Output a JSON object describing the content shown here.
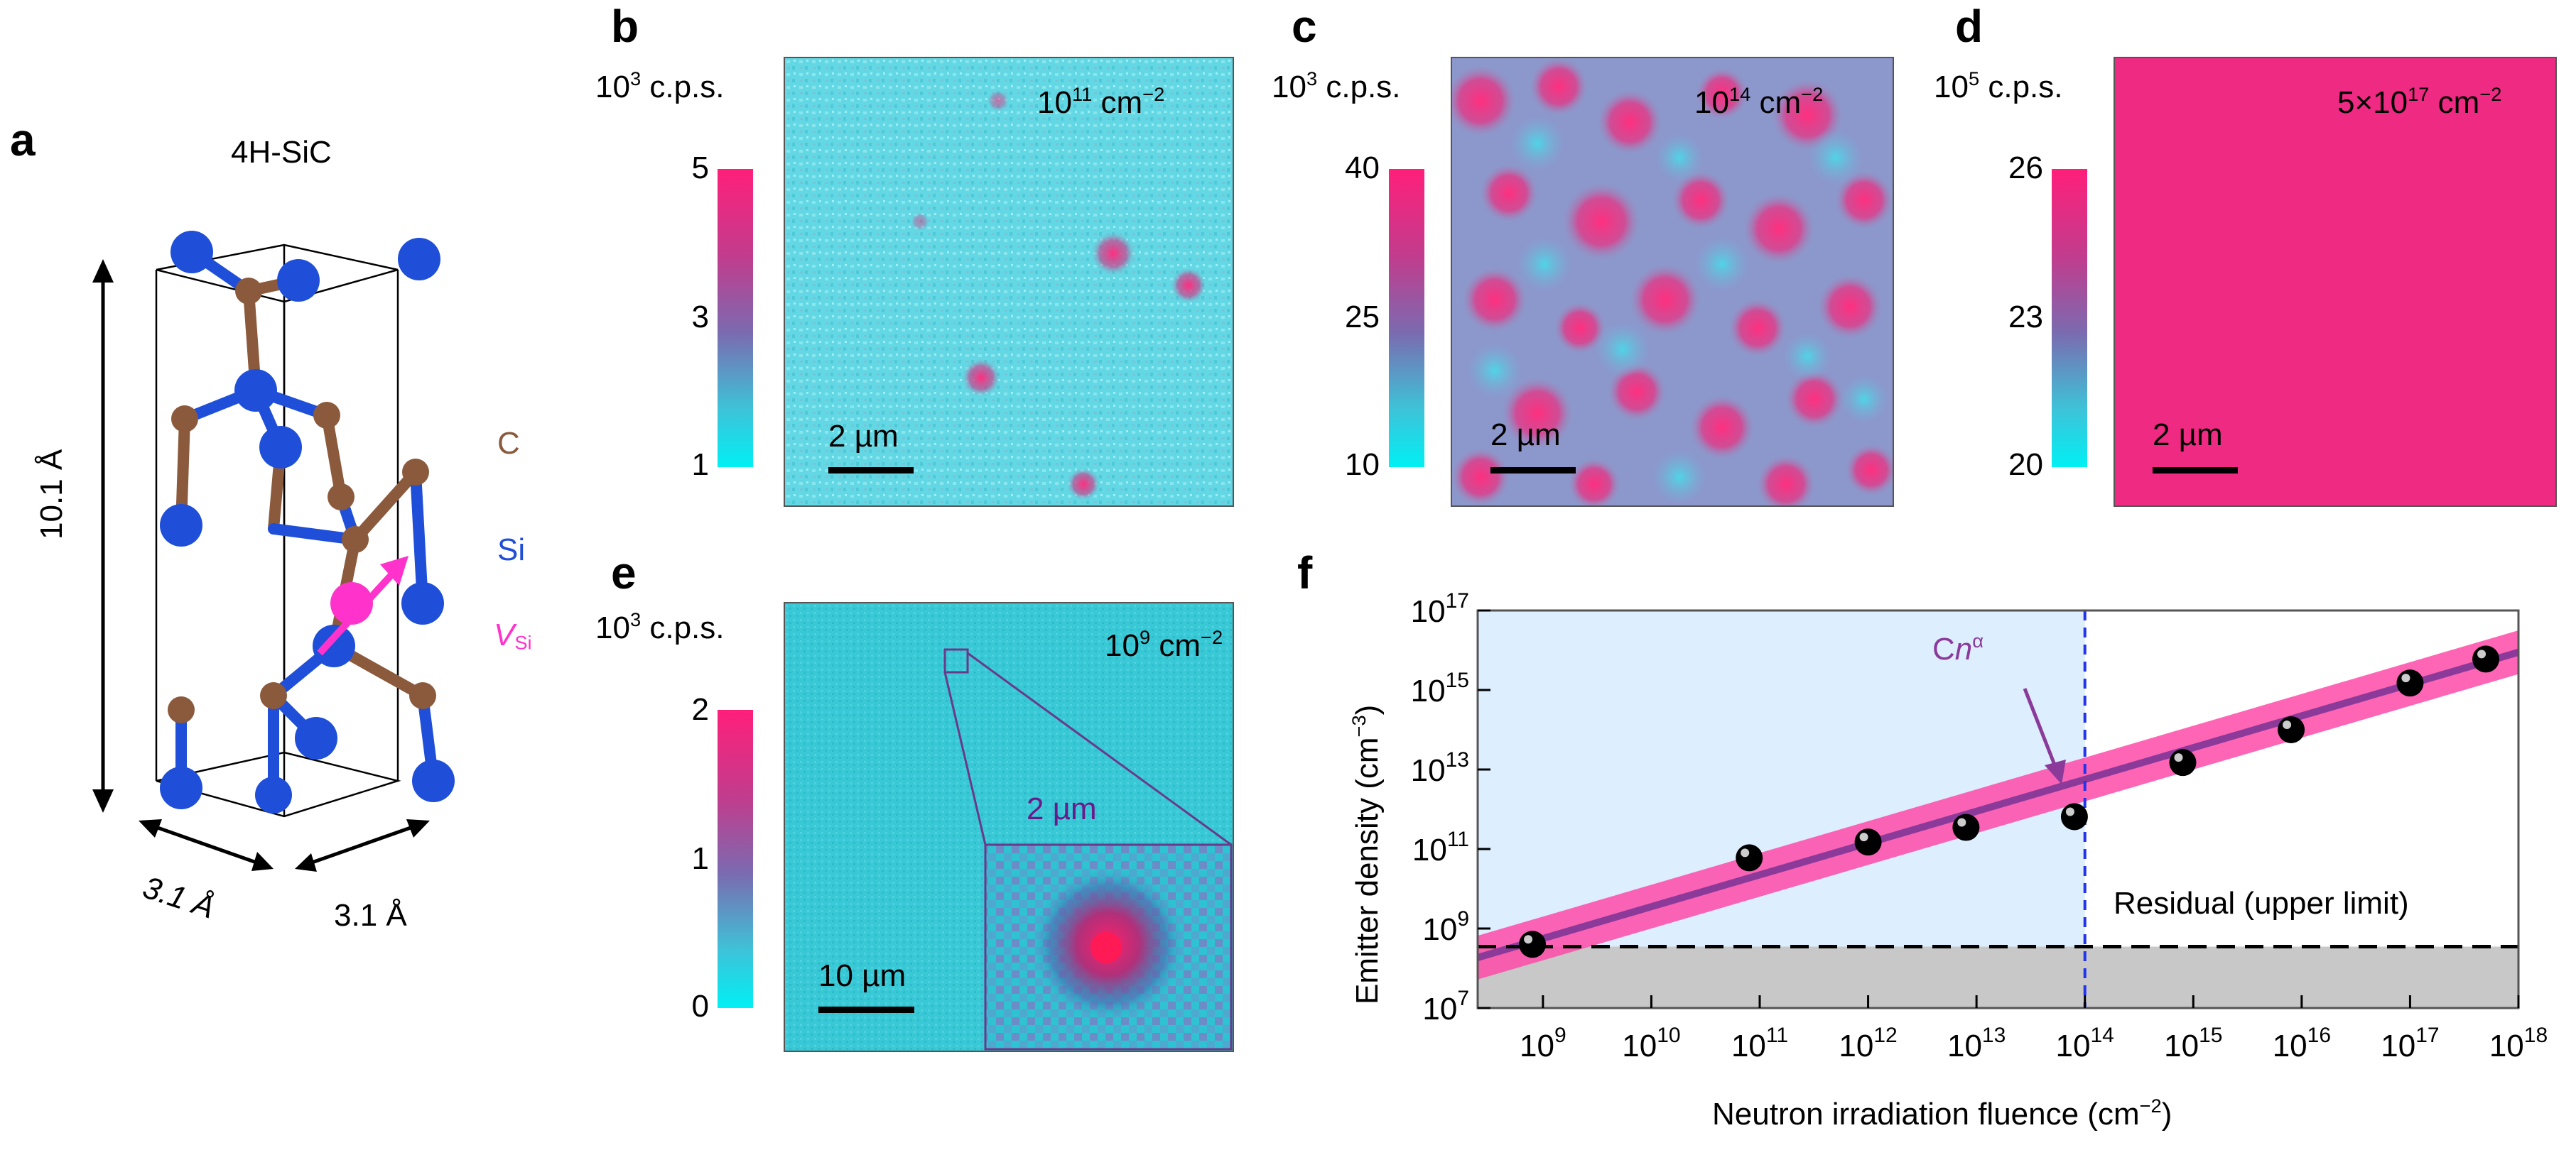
{
  "panel_a": {
    "label": "a",
    "title": "4H-SiC",
    "height_label": "10.1 Å",
    "width_label_1": "3.1 Å",
    "width_label_2": "3.1 Å",
    "atom_c": "C",
    "atom_si": "Si",
    "vacancy": "V",
    "vacancy_sub": "Si",
    "colors": {
      "carbon": "#8b5a3c",
      "silicon": "#1f4fd9",
      "vacancy": "#ff33cc"
    }
  },
  "panel_b": {
    "label": "b",
    "unit_base": "10",
    "unit_exp": "3",
    "unit_text": " c.p.s.",
    "ticks": [
      "5",
      "3",
      "1"
    ],
    "fluence_base": "10",
    "fluence_exp": "11",
    "fluence_unit": " cm",
    "fluence_unit_exp": "−2",
    "scalebar": "2 µm"
  },
  "panel_c": {
    "label": "c",
    "unit_base": "10",
    "unit_exp": "3",
    "unit_text": " c.p.s.",
    "ticks": [
      "40",
      "25",
      "10"
    ],
    "fluence_base": "10",
    "fluence_exp": "14",
    "fluence_unit": " cm",
    "fluence_unit_exp": "−2",
    "scalebar": "2 µm"
  },
  "panel_d": {
    "label": "d",
    "unit_base": "10",
    "unit_exp": "5",
    "unit_text": " c.p.s.",
    "ticks": [
      "26",
      "23",
      "20"
    ],
    "fluence_pre": "5×10",
    "fluence_exp": "17",
    "fluence_unit": " cm",
    "fluence_unit_exp": "−2",
    "scalebar": "2 µm"
  },
  "panel_e": {
    "label": "e",
    "unit_base": "10",
    "unit_exp": "3",
    "unit_text": " c.p.s.",
    "ticks": [
      "2",
      "1",
      "0"
    ],
    "fluence_base": "10",
    "fluence_exp": "9",
    "fluence_unit": " cm",
    "fluence_unit_exp": "−2",
    "scalebar": "10 µm",
    "inset_scalebar": "2 µm"
  },
  "panel_f": {
    "label": "f",
    "xlabel": "Neutron irradiation fluence (cm",
    "xlabel_exp": "−2",
    "xlabel_end": ")",
    "ylabel": "Emitter density (cm",
    "ylabel_exp": "−3",
    "ylabel_end": ")",
    "fit_label_c": "C",
    "fit_label_n": "n",
    "fit_label_exp": "α",
    "residual_label": "Residual (upper limit)",
    "x_ticks": [
      {
        "base": "10",
        "exp": "9",
        "v": 9
      },
      {
        "base": "10",
        "exp": "10",
        "v": 10
      },
      {
        "base": "10",
        "exp": "11",
        "v": 11
      },
      {
        "base": "10",
        "exp": "12",
        "v": 12
      },
      {
        "base": "10",
        "exp": "13",
        "v": 13
      },
      {
        "base": "10",
        "exp": "14",
        "v": 14
      },
      {
        "base": "10",
        "exp": "15",
        "v": 15
      },
      {
        "base": "10",
        "exp": "16",
        "v": 16
      },
      {
        "base": "10",
        "exp": "17",
        "v": 17
      },
      {
        "base": "10",
        "exp": "18",
        "v": 18
      }
    ],
    "y_ticks": [
      {
        "base": "10",
        "exp": "7",
        "v": 7
      },
      {
        "base": "10",
        "exp": "9",
        "v": 9
      },
      {
        "base": "10",
        "exp": "11",
        "v": 11
      },
      {
        "base": "10",
        "exp": "13",
        "v": 13
      },
      {
        "base": "10",
        "exp": "15",
        "v": 15
      },
      {
        "base": "10",
        "exp": "17",
        "v": 17
      }
    ]
  },
  "chart_data": {
    "type": "scatter",
    "title": "",
    "x_scale": "log",
    "y_scale": "log",
    "xlim": [
      250000000.0,
      1e+18
    ],
    "ylim": [
      10000000.0,
      1e+17
    ],
    "points": [
      {
        "x": 800000000.0,
        "y": 400000000.0
      },
      {
        "x": 80000000000.0,
        "y": 60000000000.0
      },
      {
        "x": 1000000000000.0,
        "y": 150000000000.0
      },
      {
        "x": 8000000000000.0,
        "y": 350000000000.0
      },
      {
        "x": 80000000000000.0,
        "y": 650000000000.0
      },
      {
        "x": 800000000000000.0,
        "y": 15000000000000.0
      },
      {
        "x": 8000000000000000.0,
        "y": 100000000000000.0
      },
      {
        "x": 1e+17,
        "y": 1500000000000000.0
      },
      {
        "x": 5e+17,
        "y": 6000000000000000.0
      }
    ],
    "fit": {
      "label": "Cn^α",
      "slope": 0.8,
      "intercept_log": 1.55
    },
    "residual_level": 350000000.0,
    "shaded_region_x_max": 100000000000000.0,
    "colors": {
      "fit_line": "#8b3a9a",
      "fit_band": "#ff4aa8",
      "shade": "#ddeeff",
      "residual_fill": "#c8c8c8",
      "marker": "#000000"
    }
  }
}
